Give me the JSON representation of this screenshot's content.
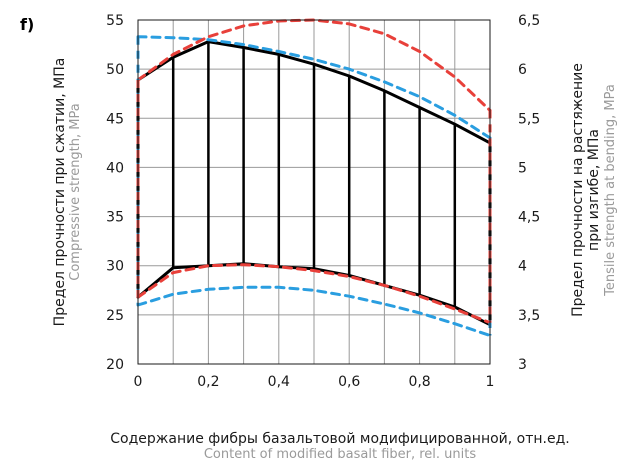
{
  "chart_data": {
    "type": "line",
    "panel_label": "f)",
    "xlabel": "Содержание фибры базальтовой модифицированной, отн.ед.",
    "xlabel_en": "Content of modified basalt fiber, rel. units",
    "ylabel_left": "Предел прочности при сжатии, МПа",
    "ylabel_left_en": "Compressive strength, MPa",
    "ylabel_right_line1": "Предел прочности на растяжение",
    "ylabel_right_line2": "при изгибе, МПа",
    "ylabel_right_en": "Tensile strength at bending,  MPa",
    "xlim": [
      0,
      1
    ],
    "ylim_left": [
      20,
      55
    ],
    "ylim_right": [
      3,
      6.5
    ],
    "grid": true,
    "x_ticks": [
      {
        "value": 0,
        "label": "0"
      },
      {
        "value": 0.2,
        "label": "0,2"
      },
      {
        "value": 0.4,
        "label": "0,4"
      },
      {
        "value": 0.6,
        "label": "0,6"
      },
      {
        "value": 0.8,
        "label": "0,8"
      },
      {
        "value": 1,
        "label": "1"
      }
    ],
    "y_left_ticks": [
      {
        "value": 20,
        "label": "20"
      },
      {
        "value": 25,
        "label": "25"
      },
      {
        "value": 30,
        "label": "30"
      },
      {
        "value": 35,
        "label": "35"
      },
      {
        "value": 40,
        "label": "40"
      },
      {
        "value": 45,
        "label": "45"
      },
      {
        "value": 50,
        "label": "50"
      },
      {
        "value": 55,
        "label": "55"
      }
    ],
    "y_right_ticks": [
      {
        "value": 3,
        "label": "3"
      },
      {
        "value": 3.5,
        "label": "3,5"
      },
      {
        "value": 4,
        "label": "4"
      },
      {
        "value": 4.5,
        "label": "4,5"
      },
      {
        "value": 5,
        "label": "5"
      },
      {
        "value": 5.5,
        "label": "5,5"
      },
      {
        "value": 6,
        "label": "6"
      },
      {
        "value": 6.5,
        "label": "6,5"
      }
    ],
    "series": [
      {
        "color": "#000000",
        "dash": "solid",
        "width": 3,
        "x": [
          0,
          0.1,
          0.2,
          0.3,
          0.4,
          0.5,
          0.6,
          0.7,
          0.8,
          0.9,
          1.0
        ],
        "y": [
          48.9,
          51.2,
          52.8,
          52.2,
          51.5,
          50.5,
          49.3,
          47.8,
          46.1,
          44.4,
          42.5
        ]
      },
      {
        "color": "#000000",
        "dash": "solid",
        "width": 3,
        "x": [
          0,
          0.1,
          0.2,
          0.3,
          0.4,
          0.5,
          0.6,
          0.7,
          0.8,
          0.9,
          1.0
        ],
        "y": [
          26.8,
          29.8,
          30.0,
          30.2,
          29.9,
          29.7,
          29.0,
          28.0,
          27.0,
          25.8,
          24.0
        ]
      },
      {
        "color": "#e8403a",
        "dash": "8,6",
        "width": 3,
        "x": [
          0,
          0.1,
          0.2,
          0.3,
          0.4,
          0.5,
          0.6,
          0.7,
          0.8,
          0.9,
          1.0
        ],
        "y": [
          48.9,
          51.5,
          53.3,
          54.4,
          54.9,
          55.0,
          54.6,
          53.6,
          51.8,
          49.2,
          45.8
        ]
      },
      {
        "color": "#e8403a",
        "dash": "8,6",
        "width": 3,
        "x": [
          0,
          0.1,
          0.2,
          0.3,
          0.4,
          0.5,
          0.6,
          0.7,
          0.8,
          0.9,
          1.0
        ],
        "y": [
          26.8,
          29.3,
          30.0,
          30.1,
          29.9,
          29.5,
          28.9,
          28.0,
          26.9,
          25.6,
          24.2
        ]
      },
      {
        "color": "#2a9ee0",
        "dash": "8,6",
        "width": 3,
        "x": [
          0,
          0.1,
          0.2,
          0.3,
          0.4,
          0.5,
          0.6,
          0.7,
          0.8,
          0.9,
          1.0
        ],
        "y": [
          53.3,
          53.2,
          53.0,
          52.5,
          51.8,
          51.0,
          50.0,
          48.7,
          47.2,
          45.3,
          43.0
        ]
      },
      {
        "color": "#2a9ee0",
        "dash": "8,6",
        "width": 3,
        "x": [
          0,
          0.1,
          0.2,
          0.3,
          0.4,
          0.5,
          0.6,
          0.7,
          0.8,
          0.9,
          1.0
        ],
        "y": [
          26.0,
          27.1,
          27.6,
          27.8,
          27.8,
          27.5,
          26.9,
          26.1,
          25.2,
          24.1,
          22.9
        ]
      }
    ],
    "hatch_x": [
      0.1,
      0.2,
      0.3,
      0.4,
      0.5,
      0.6,
      0.7,
      0.8,
      0.9
    ]
  }
}
